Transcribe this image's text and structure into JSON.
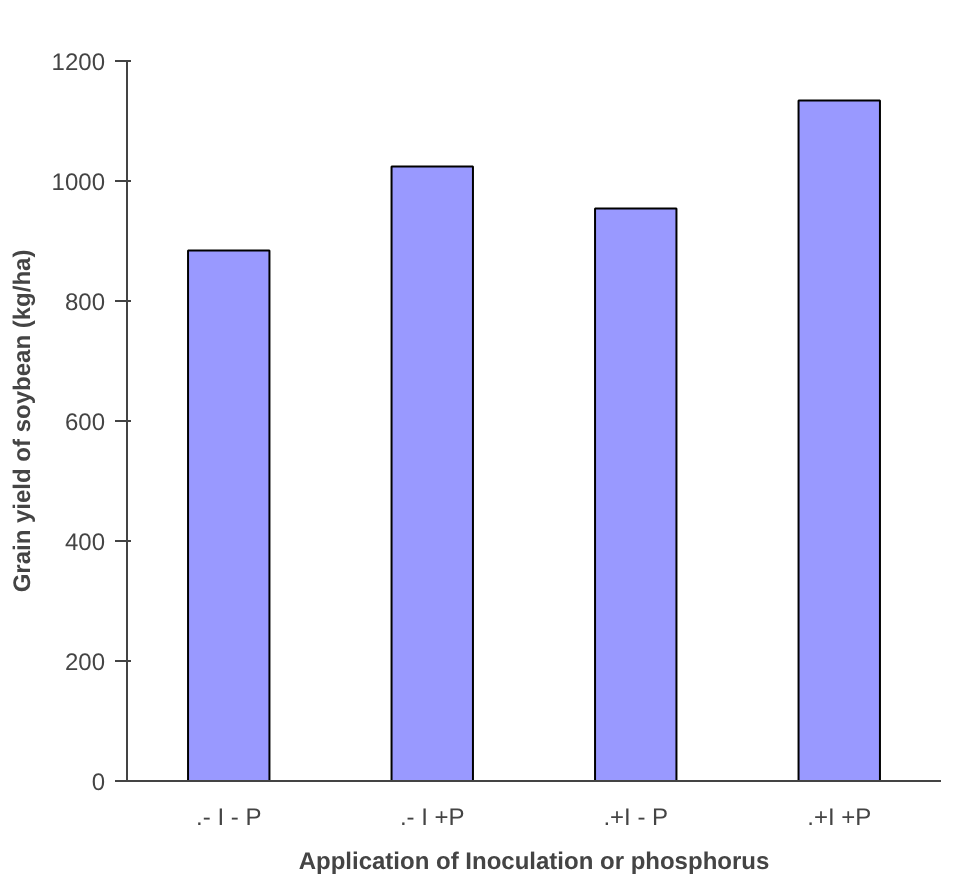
{
  "chart_data": {
    "type": "bar",
    "xlabel": "Application of Inoculation or phosphorus",
    "ylabel": "Grain yield of soybean (kg/ha)",
    "categories": [
      ".- I - P",
      ".- I +P",
      ".+I - P",
      ".+I +P"
    ],
    "series": [
      {
        "color": "#9999ff",
        "values": [
          884,
          1024,
          954,
          1134
        ]
      }
    ],
    "ylim": [
      0,
      1200
    ],
    "yticks": [
      0,
      200,
      400,
      600,
      800,
      1000,
      1200
    ],
    "grid": false
  }
}
